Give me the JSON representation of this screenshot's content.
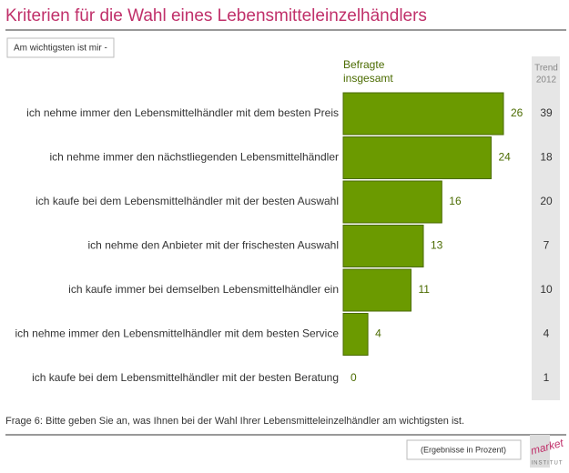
{
  "chart_data": {
    "type": "bar",
    "orientation": "horizontal",
    "title": "Kriterien für die Wahl eines Lebensmitteleinzelhändlers",
    "subtitle": "Am wichtigsten ist mir -",
    "categories": [
      "ich nehme immer den Lebensmittelhändler mit dem besten Preis",
      "ich nehme immer den nächstliegenden Lebensmittelhändler",
      "ich kaufe bei dem Lebensmittelhändler mit der besten Auswahl",
      "ich nehme den Anbieter mit der frischesten Auswahl",
      "ich kaufe immer bei demselben Lebensmittelhändler ein",
      "ich nehme immer den Lebensmittelhändler mit dem besten Service",
      "ich kaufe bei dem Lebensmittelhändler mit der besten Beratung"
    ],
    "series": [
      {
        "name": [
          "Befragte",
          "insgesamt"
        ],
        "color": "#6b9a00",
        "values": [
          26,
          24,
          16,
          13,
          11,
          4,
          0
        ]
      }
    ],
    "trend": {
      "name": [
        "Trend",
        "2012"
      ],
      "values": [
        39,
        18,
        20,
        7,
        10,
        4,
        1
      ]
    },
    "footnote": "Frage 6:   Bitte geben Sie an, was Ihnen bei der Wahl Ihrer Lebensmitteleinzelhändler am wichtigsten ist.",
    "note": "(Ergebnisse in Prozent)",
    "logo": [
      "market",
      "INSTITUT"
    ]
  }
}
